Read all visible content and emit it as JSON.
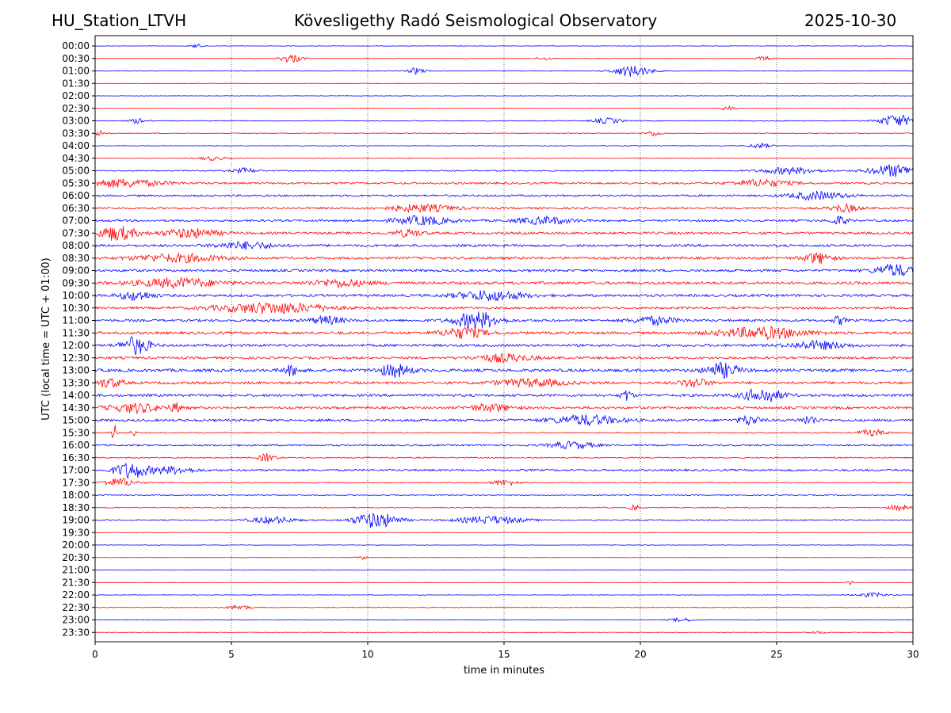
{
  "header": {
    "station": "HU_Station_LTVH",
    "observatory": "Kövesligethy Radó Seismological Observatory",
    "date": "2025-10-30"
  },
  "chart_data": {
    "type": "line",
    "title": "Kövesligethy Radó Seismological Observatory",
    "xlabel": "time in minutes",
    "ylabel": "UTC (local time = UTC + 01:00)",
    "xlim": [
      0,
      30
    ],
    "xticks": [
      0,
      5,
      10,
      15,
      20,
      25,
      30
    ],
    "grid": "vertical dotted at every 5 minutes",
    "colors": [
      "#0000ff",
      "#ff0000"
    ],
    "rows": [
      {
        "label": "00:00",
        "color": "#0000ff",
        "noise": 0.3,
        "events": [
          {
            "t": 3.7,
            "a": 1.2,
            "w": 0.2
          }
        ]
      },
      {
        "label": "00:30",
        "color": "#ff0000",
        "noise": 0.3,
        "events": [
          {
            "t": 7.2,
            "a": 2.5,
            "w": 0.4
          },
          {
            "t": 16.5,
            "a": 1.0,
            "w": 0.3
          },
          {
            "t": 24.5,
            "a": 1.2,
            "w": 0.3
          }
        ]
      },
      {
        "label": "01:00",
        "color": "#0000ff",
        "noise": 0.4,
        "events": [
          {
            "t": 11.8,
            "a": 1.8,
            "w": 0.3
          },
          {
            "t": 19.7,
            "a": 3.2,
            "w": 0.7
          }
        ]
      },
      {
        "label": "01:30",
        "color": "#ff0000",
        "noise": 0.2,
        "events": []
      },
      {
        "label": "02:00",
        "color": "#0000ff",
        "noise": 0.25,
        "events": []
      },
      {
        "label": "02:30",
        "color": "#ff0000",
        "noise": 0.25,
        "events": [
          {
            "t": 23.2,
            "a": 1.3,
            "w": 0.3
          }
        ]
      },
      {
        "label": "03:00",
        "color": "#0000ff",
        "noise": 0.5,
        "events": [
          {
            "t": 1.6,
            "a": 1.4,
            "w": 0.3
          },
          {
            "t": 18.8,
            "a": 1.6,
            "w": 0.5
          },
          {
            "t": 29.4,
            "a": 3.5,
            "w": 0.6
          }
        ]
      },
      {
        "label": "03:30",
        "color": "#ff0000",
        "noise": 0.5,
        "events": [
          {
            "t": 0.2,
            "a": 1.5,
            "w": 0.3
          },
          {
            "t": 20.5,
            "a": 1.5,
            "w": 0.3
          }
        ]
      },
      {
        "label": "04:00",
        "color": "#0000ff",
        "noise": 0.4,
        "events": [
          {
            "t": 24.4,
            "a": 1.5,
            "w": 0.4
          }
        ]
      },
      {
        "label": "04:30",
        "color": "#ff0000",
        "noise": 0.4,
        "events": [
          {
            "t": 4.3,
            "a": 1.2,
            "w": 0.5
          }
        ]
      },
      {
        "label": "05:00",
        "color": "#0000ff",
        "noise": 0.7,
        "events": [
          {
            "t": 5.5,
            "a": 1.5,
            "w": 0.4
          },
          {
            "t": 25.5,
            "a": 2.0,
            "w": 1.0
          },
          {
            "t": 29.3,
            "a": 3.5,
            "w": 0.9
          }
        ]
      },
      {
        "label": "05:30",
        "color": "#ff0000",
        "noise": 1.2,
        "events": [
          {
            "t": 1.0,
            "a": 2.2,
            "w": 1.5
          },
          {
            "t": 24.5,
            "a": 2.0,
            "w": 1.0
          }
        ]
      },
      {
        "label": "06:00",
        "color": "#0000ff",
        "noise": 1.2,
        "events": [
          {
            "t": 26.5,
            "a": 2.2,
            "w": 1.0
          }
        ]
      },
      {
        "label": "06:30",
        "color": "#ff0000",
        "noise": 1.2,
        "events": [
          {
            "t": 12.0,
            "a": 2.0,
            "w": 1.2
          },
          {
            "t": 27.5,
            "a": 2.2,
            "w": 0.5
          }
        ]
      },
      {
        "label": "07:00",
        "color": "#0000ff",
        "noise": 1.3,
        "events": [
          {
            "t": 12.0,
            "a": 2.5,
            "w": 1.0
          },
          {
            "t": 16.5,
            "a": 2.0,
            "w": 1.0
          },
          {
            "t": 27.3,
            "a": 2.5,
            "w": 0.3
          }
        ]
      },
      {
        "label": "07:30",
        "color": "#ff0000",
        "noise": 1.5,
        "events": [
          {
            "t": 0.8,
            "a": 4.0,
            "w": 0.7
          },
          {
            "t": 3.5,
            "a": 2.5,
            "w": 1.0
          },
          {
            "t": 11.5,
            "a": 2.0,
            "w": 0.5
          }
        ]
      },
      {
        "label": "08:00",
        "color": "#0000ff",
        "noise": 1.5,
        "events": [
          {
            "t": 5.5,
            "a": 2.0,
            "w": 1.0
          }
        ]
      },
      {
        "label": "08:30",
        "color": "#ff0000",
        "noise": 1.5,
        "events": [
          {
            "t": 3.0,
            "a": 2.2,
            "w": 1.5
          },
          {
            "t": 26.5,
            "a": 3.0,
            "w": 0.5
          }
        ]
      },
      {
        "label": "09:00",
        "color": "#0000ff",
        "noise": 1.5,
        "events": [
          {
            "t": 29.3,
            "a": 3.5,
            "w": 0.7
          }
        ]
      },
      {
        "label": "09:30",
        "color": "#ff0000",
        "noise": 1.7,
        "events": [
          {
            "t": 3.0,
            "a": 2.5,
            "w": 1.5
          },
          {
            "t": 9.0,
            "a": 2.0,
            "w": 1.0
          }
        ]
      },
      {
        "label": "10:00",
        "color": "#0000ff",
        "noise": 1.6,
        "events": [
          {
            "t": 1.5,
            "a": 2.5,
            "w": 0.6
          },
          {
            "t": 14.5,
            "a": 2.8,
            "w": 1.2
          }
        ]
      },
      {
        "label": "10:30",
        "color": "#ff0000",
        "noise": 1.4,
        "events": [
          {
            "t": 6.5,
            "a": 3.0,
            "w": 2.0
          }
        ]
      },
      {
        "label": "11:00",
        "color": "#0000ff",
        "noise": 1.5,
        "events": [
          {
            "t": 8.5,
            "a": 2.2,
            "w": 0.6
          },
          {
            "t": 14.0,
            "a": 5.0,
            "w": 0.8
          },
          {
            "t": 20.5,
            "a": 2.2,
            "w": 0.8
          },
          {
            "t": 27.3,
            "a": 2.5,
            "w": 0.2
          }
        ]
      },
      {
        "label": "11:30",
        "color": "#ff0000",
        "noise": 1.6,
        "events": [
          {
            "t": 13.5,
            "a": 3.0,
            "w": 0.8
          },
          {
            "t": 24.5,
            "a": 3.2,
            "w": 1.5
          }
        ]
      },
      {
        "label": "12:00",
        "color": "#0000ff",
        "noise": 1.6,
        "events": [
          {
            "t": 1.5,
            "a": 5.0,
            "w": 0.5
          },
          {
            "t": 26.5,
            "a": 2.2,
            "w": 1.0
          }
        ]
      },
      {
        "label": "12:30",
        "color": "#ff0000",
        "noise": 1.5,
        "events": [
          {
            "t": 15.0,
            "a": 2.2,
            "w": 1.0
          }
        ]
      },
      {
        "label": "13:00",
        "color": "#0000ff",
        "noise": 1.8,
        "events": [
          {
            "t": 7.2,
            "a": 2.8,
            "w": 0.3
          },
          {
            "t": 11.0,
            "a": 3.5,
            "w": 0.6
          },
          {
            "t": 23.0,
            "a": 4.0,
            "w": 0.6
          }
        ]
      },
      {
        "label": "13:30",
        "color": "#ff0000",
        "noise": 1.6,
        "events": [
          {
            "t": 0.5,
            "a": 2.5,
            "w": 0.5
          },
          {
            "t": 16.0,
            "a": 2.2,
            "w": 1.2
          },
          {
            "t": 22.0,
            "a": 2.5,
            "w": 0.5
          }
        ]
      },
      {
        "label": "14:00",
        "color": "#0000ff",
        "noise": 1.6,
        "events": [
          {
            "t": 19.5,
            "a": 3.0,
            "w": 0.2
          },
          {
            "t": 24.5,
            "a": 4.0,
            "w": 0.7
          }
        ]
      },
      {
        "label": "14:30",
        "color": "#ff0000",
        "noise": 1.5,
        "events": [
          {
            "t": 1.5,
            "a": 2.5,
            "w": 1.0
          },
          {
            "t": 3.0,
            "a": 2.5,
            "w": 0.2
          },
          {
            "t": 14.5,
            "a": 2.0,
            "w": 0.8
          }
        ]
      },
      {
        "label": "15:00",
        "color": "#0000ff",
        "noise": 1.5,
        "events": [
          {
            "t": 18.0,
            "a": 2.8,
            "w": 1.2
          },
          {
            "t": 24.0,
            "a": 2.5,
            "w": 0.4
          },
          {
            "t": 26.2,
            "a": 2.5,
            "w": 0.3
          }
        ]
      },
      {
        "label": "15:30",
        "color": "#ff0000",
        "noise": 0.7,
        "events": [
          {
            "t": 0.7,
            "a": 5.0,
            "w": 0.1
          },
          {
            "t": 1.4,
            "a": 2.0,
            "w": 0.1
          },
          {
            "t": 28.5,
            "a": 1.8,
            "w": 0.5
          }
        ]
      },
      {
        "label": "16:00",
        "color": "#0000ff",
        "noise": 1.0,
        "events": [
          {
            "t": 17.5,
            "a": 2.0,
            "w": 0.8
          }
        ]
      },
      {
        "label": "16:30",
        "color": "#ff0000",
        "noise": 0.7,
        "events": [
          {
            "t": 6.3,
            "a": 2.5,
            "w": 0.3
          }
        ]
      },
      {
        "label": "17:00",
        "color": "#0000ff",
        "noise": 1.2,
        "events": [
          {
            "t": 1.3,
            "a": 4.5,
            "w": 0.6
          },
          {
            "t": 2.8,
            "a": 2.0,
            "w": 0.8
          }
        ]
      },
      {
        "label": "17:30",
        "color": "#ff0000",
        "noise": 0.6,
        "events": [
          {
            "t": 0.9,
            "a": 2.5,
            "w": 0.6
          },
          {
            "t": 15.0,
            "a": 1.5,
            "w": 0.5
          }
        ]
      },
      {
        "label": "18:00",
        "color": "#0000ff",
        "noise": 0.6,
        "events": []
      },
      {
        "label": "18:30",
        "color": "#ff0000",
        "noise": 0.6,
        "events": [
          {
            "t": 19.8,
            "a": 1.5,
            "w": 0.2
          },
          {
            "t": 29.5,
            "a": 1.5,
            "w": 0.4
          }
        ]
      },
      {
        "label": "19:00",
        "color": "#0000ff",
        "noise": 0.7,
        "events": [
          {
            "t": 6.5,
            "a": 2.0,
            "w": 0.8
          },
          {
            "t": 10.3,
            "a": 4.5,
            "w": 0.8
          },
          {
            "t": 14.5,
            "a": 2.2,
            "w": 1.2
          }
        ]
      },
      {
        "label": "19:30",
        "color": "#ff0000",
        "noise": 0.4,
        "events": []
      },
      {
        "label": "20:00",
        "color": "#0000ff",
        "noise": 0.3,
        "events": []
      },
      {
        "label": "20:30",
        "color": "#ff0000",
        "noise": 0.3,
        "events": [
          {
            "t": 9.8,
            "a": 1.0,
            "w": 0.2
          }
        ]
      },
      {
        "label": "21:00",
        "color": "#0000ff",
        "noise": 0.3,
        "events": []
      },
      {
        "label": "21:30",
        "color": "#ff0000",
        "noise": 0.3,
        "events": [
          {
            "t": 27.7,
            "a": 1.2,
            "w": 0.1
          }
        ]
      },
      {
        "label": "22:00",
        "color": "#0000ff",
        "noise": 0.3,
        "events": [
          {
            "t": 28.5,
            "a": 1.2,
            "w": 0.6
          }
        ]
      },
      {
        "label": "22:30",
        "color": "#ff0000",
        "noise": 0.5,
        "events": [
          {
            "t": 5.3,
            "a": 1.5,
            "w": 0.4
          }
        ]
      },
      {
        "label": "23:00",
        "color": "#0000ff",
        "noise": 0.3,
        "events": [
          {
            "t": 21.5,
            "a": 1.2,
            "w": 0.4
          }
        ]
      },
      {
        "label": "23:30",
        "color": "#ff0000",
        "noise": 0.3,
        "events": [
          {
            "t": 26.5,
            "a": 0.8,
            "w": 0.3
          }
        ]
      }
    ]
  }
}
